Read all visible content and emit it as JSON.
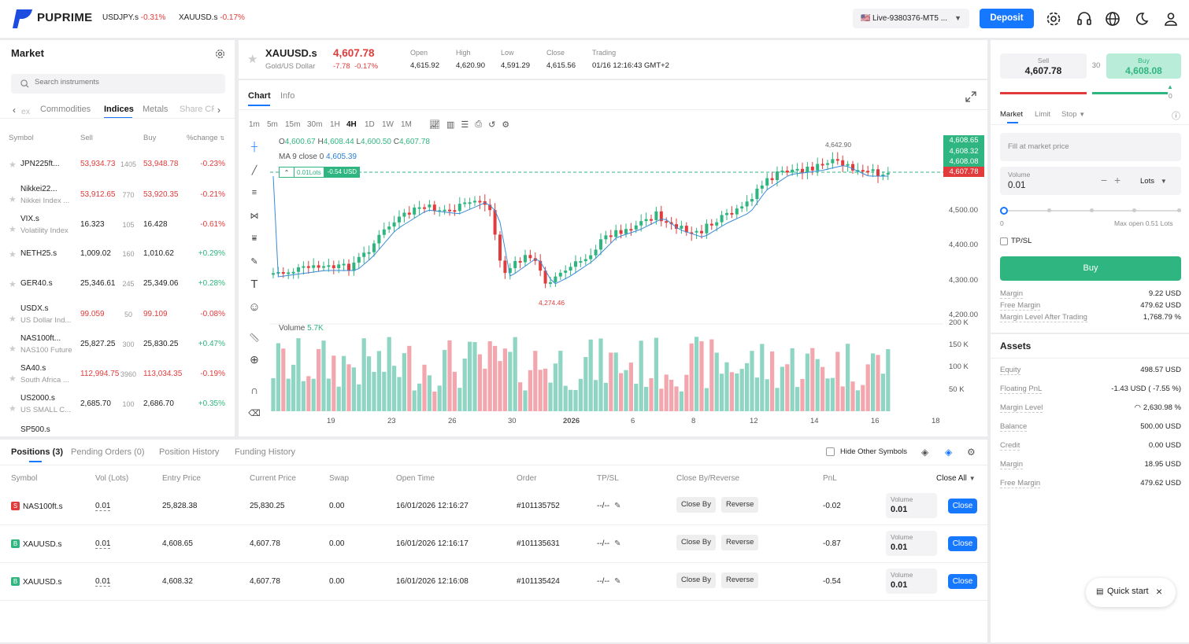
{
  "header": {
    "brand": "PUPRIME",
    "tickers": [
      {
        "symbol": "USDJPY.s",
        "change": "-0.31%"
      },
      {
        "symbol": "XAUUSD.s",
        "change": "-0.17%"
      }
    ],
    "account": "Live-9380376-MT5 ...",
    "deposit_label": "Deposit"
  },
  "market": {
    "title": "Market",
    "search_placeholder": "Search instruments",
    "tabs": [
      "ex",
      "Commodities",
      "Indices",
      "Metals",
      "Share CF"
    ],
    "active_tab": "Indices",
    "columns": [
      "Symbol",
      "Sell",
      "Buy",
      "%change"
    ],
    "rows": [
      {
        "symbol": "JPN225ft...",
        "sub": "",
        "sell": "53,934.73",
        "spread": "1405",
        "buy": "53,948.78",
        "change": "-0.23%",
        "up": false
      },
      {
        "symbol": "Nikkei22...",
        "sub": "Nikkei Index ...",
        "sell": "53,912.65",
        "spread": "770",
        "buy": "53,920.35",
        "change": "-0.21%",
        "up": false
      },
      {
        "symbol": "VIX.s",
        "sub": "Volatility Index",
        "sell": "16.323",
        "spread": "105",
        "buy": "16.428",
        "change": "-0.61%",
        "up": false,
        "plain": true
      },
      {
        "symbol": "NETH25.s",
        "sub": "",
        "sell": "1,009.02",
        "spread": "160",
        "buy": "1,010.62",
        "change": "+0.29%",
        "up": true
      },
      {
        "symbol": "GER40.s",
        "sub": "",
        "sell": "25,346.61",
        "spread": "245",
        "buy": "25,349.06",
        "change": "+0.28%",
        "up": true
      },
      {
        "symbol": "USDX.s",
        "sub": "US Dollar Ind...",
        "sell": "99.059",
        "spread": "50",
        "buy": "99.109",
        "change": "-0.08%",
        "up": false
      },
      {
        "symbol": "NAS100ft...",
        "sub": "NAS100 Future",
        "sell": "25,827.25",
        "spread": "300",
        "buy": "25,830.25",
        "change": "+0.47%",
        "up": true
      },
      {
        "symbol": "SA40.s",
        "sub": "South Africa ...",
        "sell": "112,994.75",
        "spread": "3960",
        "buy": "113,034.35",
        "change": "-0.19%",
        "up": false
      },
      {
        "symbol": "US2000.s",
        "sub": "US SMALL C...",
        "sell": "2,685.70",
        "spread": "100",
        "buy": "2,686.70",
        "change": "+0.35%",
        "up": true
      }
    ],
    "last_partial": "SP500.s"
  },
  "instrument": {
    "symbol": "XAUUSD.s",
    "name": "Gold/US Dollar",
    "price": "4,607.78",
    "change": "-7.78",
    "change_pct": "-0.17%",
    "stats": [
      {
        "label": "Open",
        "value": "4,615.92"
      },
      {
        "label": "High",
        "value": "4,620.90"
      },
      {
        "label": "Low",
        "value": "4,591.29"
      },
      {
        "label": "Close",
        "value": "4,615.56"
      },
      {
        "label": "Trading",
        "value": "01/16 12:16:43 GMT+2"
      }
    ]
  },
  "chart": {
    "tabs": [
      "Chart",
      "Info"
    ],
    "timeframes": [
      "1m",
      "5m",
      "15m",
      "30m",
      "1H",
      "4H",
      "1D",
      "1W",
      "1M"
    ],
    "active_tf": "4H",
    "ohlc": {
      "o_label": "O",
      "o": "4,600.67",
      "h_label": "H",
      "h": "4,608.44",
      "l_label": "L",
      "l": "4,600.50",
      "c_label": "C",
      "c": "4,607.78"
    },
    "ma_label": "MA 9 close 0",
    "ma_value": "4,605.39",
    "pos_lots": "0.01Lots",
    "pos_pnl": "-0.54 USD",
    "price_tags": [
      "4,608.65",
      "4,608.32",
      "4,608.08"
    ],
    "last_tag": "4,607.78",
    "high_label": "4,642.90",
    "low_label": "4,274.46",
    "volume_label": "Volume",
    "volume_value": "5.7K"
  },
  "chart_data": {
    "type": "candlestick",
    "y_ticks": [
      "4,500.00",
      "4,400.00",
      "4,300.00",
      "4,200.00"
    ],
    "vol_ticks": [
      "200 K",
      "150 K",
      "100 K",
      "50 K"
    ],
    "x_ticks": [
      "19",
      "23",
      "26",
      "30",
      "2026",
      "6",
      "8",
      "12",
      "14",
      "16",
      "18"
    ]
  },
  "positions": {
    "tabs": [
      "Positions (3)",
      "Pending Orders (0)",
      "Position History",
      "Funding History"
    ],
    "hide_other": "Hide Other Symbols",
    "columns": [
      "Symbol",
      "Vol (Lots)",
      "Entry Price",
      "Current Price",
      "Swap",
      "Open Time",
      "Order",
      "TP/SL",
      "Close By/Reverse",
      "PnL"
    ],
    "close_all": "Close All",
    "rows": [
      {
        "side": "S",
        "symbol": "NAS100ft.s",
        "vol": "0.01",
        "entry": "25,828.38",
        "current": "25,830.25",
        "swap": "0.00",
        "time": "16/01/2026 12:16:27",
        "order": "#101135752",
        "tpsl": "--/--",
        "pnl": "-0.02"
      },
      {
        "side": "B",
        "symbol": "XAUUSD.s",
        "vol": "0.01",
        "entry": "4,608.65",
        "current": "4,607.78",
        "swap": "0.00",
        "time": "16/01/2026 12:16:17",
        "order": "#101135631",
        "tpsl": "--/--",
        "pnl": "-0.87"
      },
      {
        "side": "B",
        "symbol": "XAUUSD.s",
        "vol": "0.01",
        "entry": "4,608.32",
        "current": "4,607.78",
        "swap": "0.00",
        "time": "16/01/2026 12:16:08",
        "order": "#101135424",
        "tpsl": "--/--",
        "pnl": "-0.54"
      }
    ],
    "close_by": "Close By",
    "reverse": "Reverse",
    "volume_label": "Volume",
    "volume_value": "0.01",
    "close_label": "Close"
  },
  "trade": {
    "sell_label": "Sell",
    "sell_price": "4,607.78",
    "spread": "30",
    "buy_label": "Buy",
    "buy_price": "4,608.08",
    "depth": "0",
    "order_tabs": [
      "Market",
      "Limit",
      "Stop"
    ],
    "fill_placeholder": "Fill at market price",
    "volume_label": "Volume",
    "volume_value": "0.01",
    "lots_label": "Lots",
    "slider_min": "0",
    "slider_max": "Max open 0.51 Lots",
    "slider_fraction": 0,
    "tpsl_label": "TP/SL",
    "buy_button": "Buy",
    "summary": [
      {
        "k": "Margin",
        "v": "9.22 USD"
      },
      {
        "k": "Free Margin",
        "v": "479.62 USD"
      },
      {
        "k": "Margin Level After Trading",
        "v": "1,768.79 %"
      }
    ]
  },
  "assets": {
    "title": "Assets",
    "rows": [
      {
        "k": "Equity",
        "v": "498.57 USD"
      },
      {
        "k": "Floating PnL",
        "v": "-1.43 USD ( -7.55 %)",
        "color": "red"
      },
      {
        "k": "Margin Level",
        "v": "2,630.98 %",
        "color": "green"
      },
      {
        "k": "Balance",
        "v": "500.00 USD"
      },
      {
        "k": "Credit",
        "v": "0.00 USD"
      },
      {
        "k": "Margin",
        "v": "18.95 USD"
      },
      {
        "k": "Free Margin",
        "v": "479.62 USD"
      }
    ]
  },
  "quick_start": "Quick start",
  "colors": {
    "up": "#2fb57f",
    "down": "#e23b3b",
    "accent": "#1677ff",
    "vol_up": "#8fd5c3",
    "vol_down": "#f3a6ad"
  }
}
